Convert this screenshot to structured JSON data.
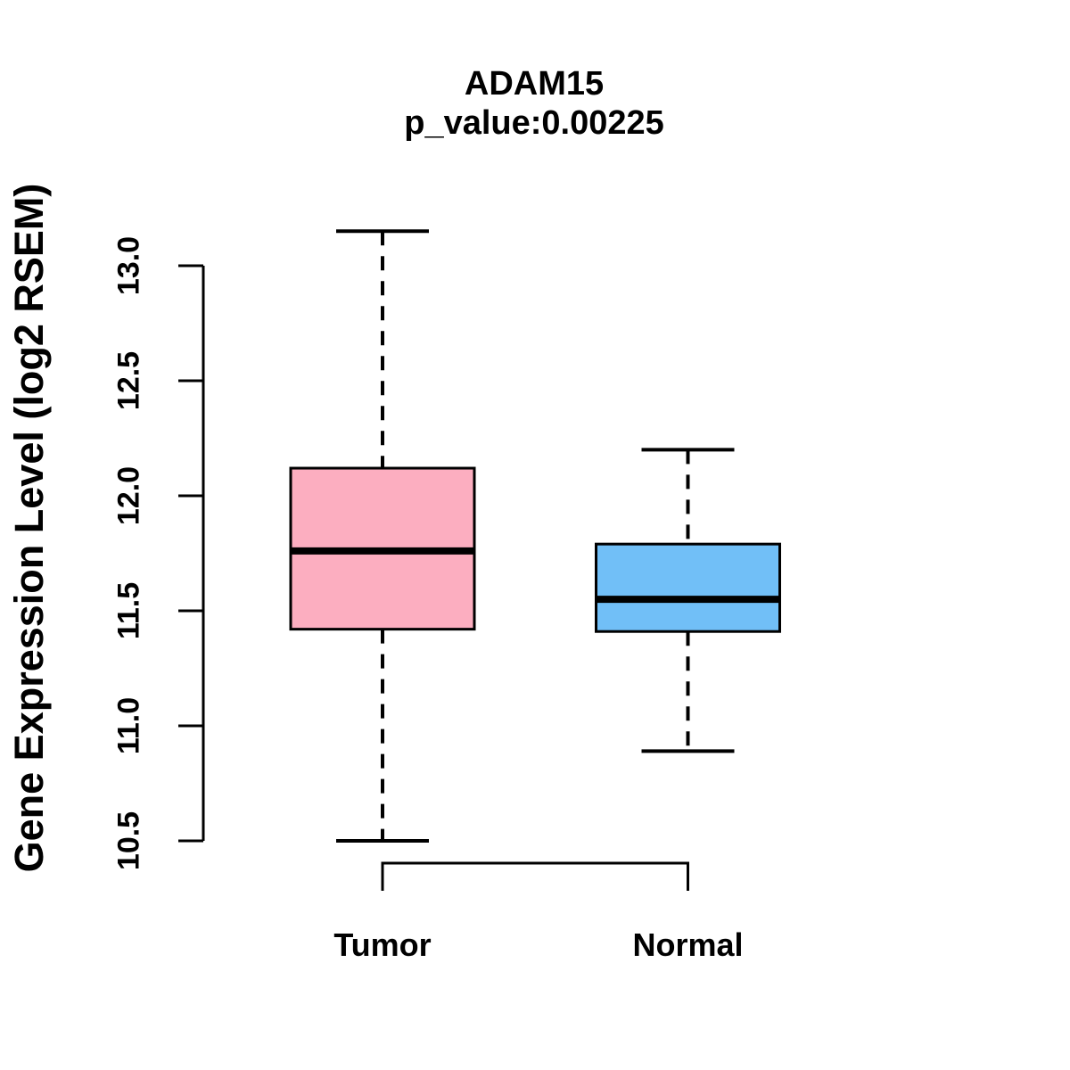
{
  "chart_data": {
    "type": "boxplot",
    "title": "ADAM15",
    "subtitle": "p_value:0.00225",
    "ylabel": "Gene Expression Level (log2 RSEM)",
    "categories": [
      "Tumor",
      "Normal"
    ],
    "ytick_labels": [
      "10.5",
      "11.0",
      "11.5",
      "12.0",
      "12.5",
      "13.0"
    ],
    "yticks": [
      10.5,
      11.0,
      11.5,
      12.0,
      12.5,
      13.0
    ],
    "axis_range": [
      10.5,
      13.0
    ],
    "grid": false,
    "legend": "none",
    "series": [
      {
        "name": "Tumor",
        "color": "#FCAEC0",
        "whisker_low": 10.5,
        "q1": 11.42,
        "median": 11.76,
        "q3": 12.12,
        "whisker_high": 13.15
      },
      {
        "name": "Normal",
        "color": "#71BFF7",
        "whisker_low": 10.89,
        "q1": 11.41,
        "median": 11.55,
        "q3": 11.79,
        "whisker_high": 12.2
      }
    ],
    "stroke_color": "#000000"
  }
}
